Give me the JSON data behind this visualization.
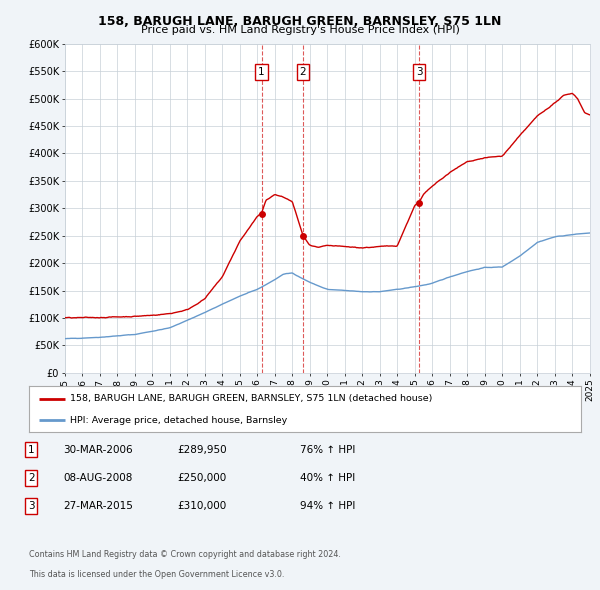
{
  "title": "158, BARUGH LANE, BARUGH GREEN, BARNSLEY, S75 1LN",
  "subtitle": "Price paid vs. HM Land Registry's House Price Index (HPI)",
  "red_label": "158, BARUGH LANE, BARUGH GREEN, BARNSLEY, S75 1LN (detached house)",
  "blue_label": "HPI: Average price, detached house, Barnsley",
  "footer1": "Contains HM Land Registry data © Crown copyright and database right 2024.",
  "footer2": "This data is licensed under the Open Government Licence v3.0.",
  "transactions": [
    {
      "num": 1,
      "date": "30-MAR-2006",
      "price": "£289,950",
      "hpi": "76% ↑ HPI",
      "year": 2006.24
    },
    {
      "num": 2,
      "date": "08-AUG-2008",
      "price": "£250,000",
      "hpi": "40% ↑ HPI",
      "year": 2008.61
    },
    {
      "num": 3,
      "date": "27-MAR-2015",
      "price": "£310,000",
      "hpi": "94% ↑ HPI",
      "year": 2015.24
    }
  ],
  "transaction_values": [
    289950,
    250000,
    310000
  ],
  "ylim": [
    0,
    600000
  ],
  "yticks": [
    0,
    50000,
    100000,
    150000,
    200000,
    250000,
    300000,
    350000,
    400000,
    450000,
    500000,
    550000,
    600000
  ],
  "ytick_labels": [
    "£0",
    "£50K",
    "£100K",
    "£150K",
    "£200K",
    "£250K",
    "£300K",
    "£350K",
    "£400K",
    "£450K",
    "£500K",
    "£550K",
    "£600K"
  ],
  "red_color": "#cc0000",
  "blue_color": "#6699cc",
  "dashed_color": "#cc0000",
  "bg_color": "#f0f4f8",
  "plot_bg": "#ffffff",
  "grid_color": "#c8d0d8",
  "legend_border": "#aaaaaa",
  "table_border": "#cc0000",
  "xlim_start": 1995,
  "xlim_end": 2025
}
